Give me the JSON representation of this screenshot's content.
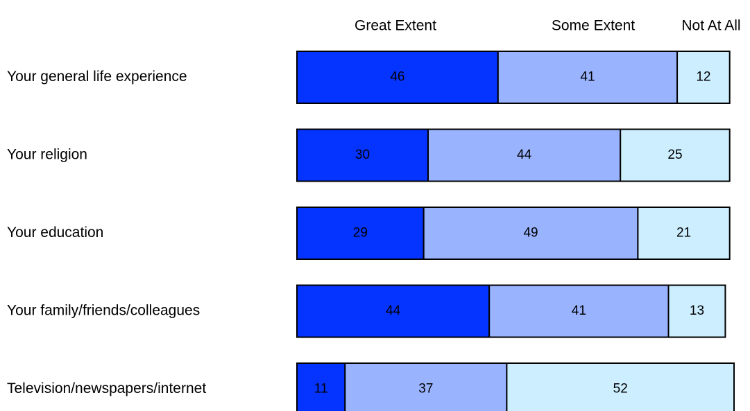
{
  "chart_data": {
    "type": "bar",
    "orientation": "horizontal",
    "stacked": true,
    "categories": [
      "Your general life experience",
      "Your religion",
      "Your education",
      "Your family/friends/colleagues",
      "Television/newspapers/internet"
    ],
    "series": [
      {
        "name": "Great Extent",
        "values": [
          46,
          30,
          29,
          44,
          11
        ],
        "color": "#0533ff"
      },
      {
        "name": "Some Extent",
        "values": [
          41,
          44,
          49,
          41,
          37
        ],
        "color": "#99b3ff"
      },
      {
        "name": "Not At All",
        "values": [
          12,
          25,
          21,
          13,
          52
        ],
        "color": "#cceeff"
      }
    ],
    "xlim": [
      0,
      100
    ],
    "grid": false,
    "legend_position": "top",
    "data_labels": true,
    "bar_edge_color": "#000000",
    "label_color": "#000000"
  }
}
